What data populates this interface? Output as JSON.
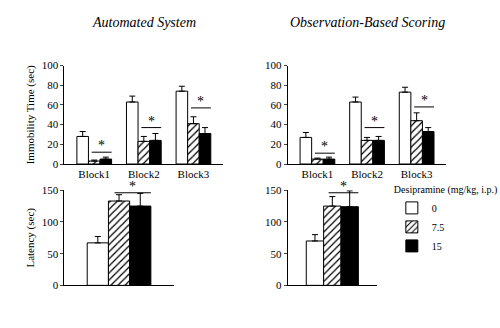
{
  "chart_data": [
    {
      "type": "bar",
      "title": "Automated System",
      "ylabel": "Immobility Time (sec)",
      "categories": [
        "Block1",
        "Block2",
        "Block3"
      ],
      "series": [
        {
          "name": "0",
          "color": "#ffffff",
          "marker": "solid",
          "values": [
            28,
            63,
            74
          ],
          "errors": [
            5,
            6,
            5
          ]
        },
        {
          "name": "7.5",
          "color": "#ffffff",
          "marker": "hatched",
          "values": [
            3,
            23,
            41
          ],
          "errors": [
            1,
            5,
            7
          ]
        },
        {
          "name": "15",
          "color": "#000000",
          "marker": "solid",
          "values": [
            5,
            24,
            31
          ],
          "errors": [
            2,
            7,
            6
          ]
        }
      ],
      "ylim": [
        0,
        100
      ],
      "yticks": [
        0,
        20,
        40,
        60,
        80,
        100
      ],
      "grid": false,
      "annotations": [
        {
          "text": "*",
          "x": 0,
          "y": 12
        },
        {
          "text": "*",
          "x": 1,
          "y": 37
        },
        {
          "text": "*",
          "x": 2,
          "y": 57
        }
      ]
    },
    {
      "type": "bar",
      "title": "Observation-Based Scoring",
      "categories": [
        "Block1",
        "Block2",
        "Block3"
      ],
      "series": [
        {
          "name": "0",
          "color": "#ffffff",
          "marker": "solid",
          "values": [
            27,
            63,
            73
          ],
          "errors": [
            5,
            5,
            5
          ]
        },
        {
          "name": "7.5",
          "color": "#ffffff",
          "marker": "hatched",
          "values": [
            5,
            24,
            44
          ],
          "errors": [
            1,
            3,
            8
          ]
        },
        {
          "name": "15",
          "color": "#000000",
          "marker": "solid",
          "values": [
            5,
            24,
            33
          ],
          "errors": [
            2,
            4,
            4
          ]
        }
      ],
      "ylim": [
        0,
        100
      ],
      "yticks": [
        0,
        20,
        40,
        60,
        80,
        100
      ],
      "grid": false,
      "annotations": [
        {
          "text": "*",
          "x": 0,
          "y": 11
        },
        {
          "text": "*",
          "x": 1,
          "y": 37
        },
        {
          "text": "*",
          "x": 2,
          "y": 58
        }
      ]
    },
    {
      "type": "bar",
      "ylabel": "Latency (sec)",
      "categories": [
        null
      ],
      "series": [
        {
          "name": "0",
          "color": "#ffffff",
          "marker": "solid",
          "values": [
            67
          ],
          "errors": [
            10
          ]
        },
        {
          "name": "7.5",
          "color": "#ffffff",
          "marker": "hatched",
          "values": [
            133
          ],
          "errors": [
            10
          ]
        },
        {
          "name": "15",
          "color": "#000000",
          "marker": "solid",
          "values": [
            125
          ],
          "errors": [
            20
          ]
        }
      ],
      "ylim": [
        0,
        150
      ],
      "yticks": [
        0,
        50,
        100,
        150
      ],
      "grid": false,
      "annotations": [
        {
          "text": "*",
          "x": 0,
          "y": 146
        }
      ]
    },
    {
      "type": "bar",
      "categories": [
        null
      ],
      "series": [
        {
          "name": "0",
          "color": "#ffffff",
          "marker": "solid",
          "values": [
            70
          ],
          "errors": [
            10
          ]
        },
        {
          "name": "7.5",
          "color": "#ffffff",
          "marker": "hatched",
          "values": [
            125
          ],
          "errors": [
            15
          ]
        },
        {
          "name": "15",
          "color": "#000000",
          "marker": "solid",
          "values": [
            124
          ],
          "errors": [
            25
          ]
        }
      ],
      "ylim": [
        0,
        150
      ],
      "yticks": [
        0,
        50,
        100,
        150
      ],
      "grid": false,
      "legend": "bottom right",
      "legend_title": "Desipramine (mg/kg, i.p.)",
      "annotations": [
        {
          "text": "*",
          "x": 0,
          "y": 146
        }
      ]
    }
  ]
}
